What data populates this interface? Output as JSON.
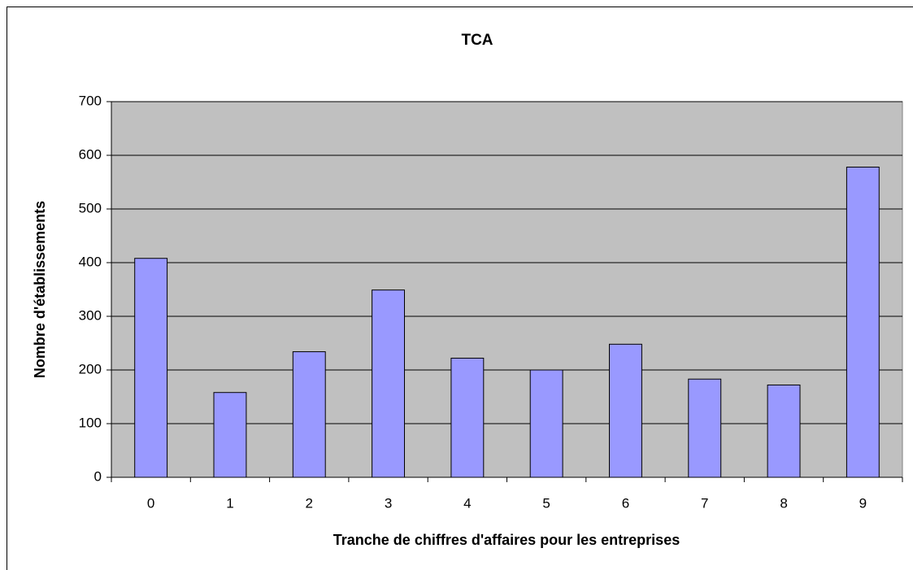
{
  "chart_data": {
    "type": "bar",
    "title": "TCA",
    "x_label": "Tranche de chiffres d'affaires pour les entreprises",
    "y_label": "Nombre d'établissements",
    "categories": [
      "0",
      "1",
      "2",
      "3",
      "4",
      "5",
      "6",
      "7",
      "8",
      "9"
    ],
    "values": [
      408,
      158,
      234,
      349,
      222,
      200,
      248,
      183,
      172,
      578
    ],
    "color": "#9999ff",
    "ylim": [
      0,
      700
    ],
    "yticks": [
      0,
      100,
      200,
      300,
      400,
      500,
      600,
      700
    ],
    "grid": true
  }
}
